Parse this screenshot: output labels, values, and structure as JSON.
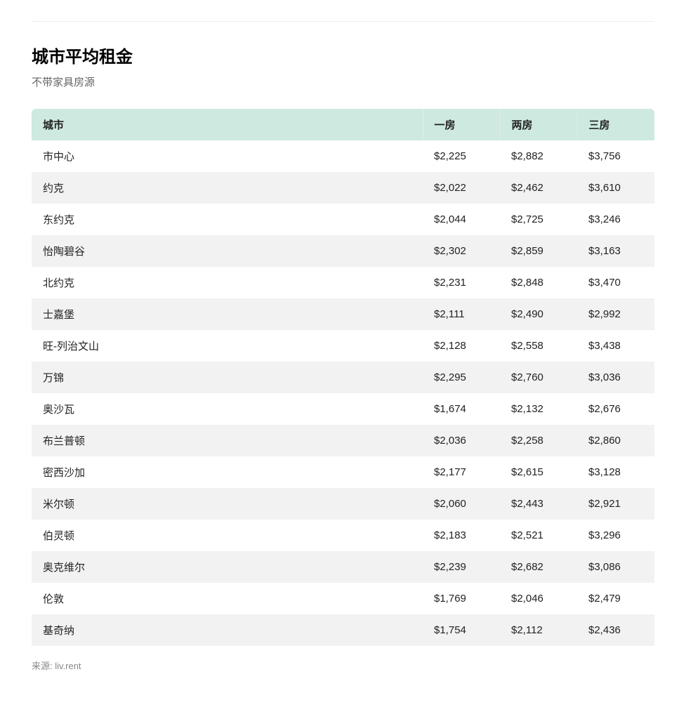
{
  "title": "城市平均租金",
  "subtitle": "不带家具房源",
  "source": "来源: liv.rent",
  "table": {
    "header_bg": "#cde9e0",
    "row_alt_bg": "#f2f2f2",
    "row_bg": "#ffffff",
    "text_color": "#222222",
    "columns": [
      "城市",
      "一房",
      "两房",
      "三房"
    ],
    "rows": [
      [
        "市中心",
        "$2,225",
        "$2,882",
        "$3,756"
      ],
      [
        "约克",
        "$2,022",
        "$2,462",
        "$3,610"
      ],
      [
        "东约克",
        "$2,044",
        "$2,725",
        "$3,246"
      ],
      [
        "怡陶碧谷",
        "$2,302",
        "$2,859",
        "$3,163"
      ],
      [
        "北约克",
        "$2,231",
        "$2,848",
        "$3,470"
      ],
      [
        "士嘉堡",
        "$2,111",
        "$2,490",
        "$2,992"
      ],
      [
        "旺-列治文山",
        "$2,128",
        "$2,558",
        "$3,438"
      ],
      [
        "万锦",
        "$2,295",
        "$2,760",
        "$3,036"
      ],
      [
        "奥沙瓦",
        "$1,674",
        "$2,132",
        "$2,676"
      ],
      [
        "布兰普顿",
        "$2,036",
        "$2,258",
        "$2,860"
      ],
      [
        "密西沙加",
        "$2,177",
        "$2,615",
        "$3,128"
      ],
      [
        "米尔顿",
        "$2,060",
        "$2,443",
        "$2,921"
      ],
      [
        "伯灵顿",
        "$2,183",
        "$2,521",
        "$3,296"
      ],
      [
        "奥克维尔",
        "$2,239",
        "$2,682",
        "$3,086"
      ],
      [
        "伦敦",
        "$1,769",
        "$2,046",
        "$2,479"
      ],
      [
        "基奇纳",
        "$1,754",
        "$2,112",
        "$2,436"
      ]
    ]
  }
}
